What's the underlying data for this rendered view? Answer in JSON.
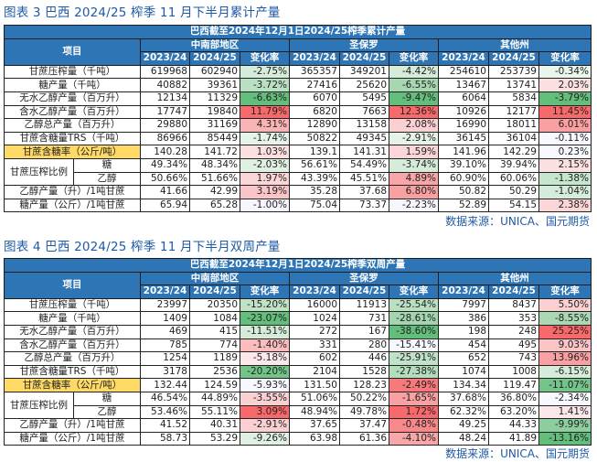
{
  "figures": [
    {
      "title": "图表 3  巴西 2024/25 榨季 11 月下半月累计产量",
      "banner": "巴西截至2024年12月1日2024/25榨季累计产量",
      "item_header": "项目",
      "regions": [
        "中南部地区",
        "圣保罗",
        "其他州"
      ],
      "year_headers": [
        "2023/24",
        "2024/25",
        "变化率"
      ],
      "rows": [
        {
          "label": "甘蔗压榨量（千吨）",
          "values": [
            "619968",
            "602940",
            "-2.75%",
            "365357",
            "349201",
            "-4.42%",
            "254610",
            "253739",
            "-0.34%"
          ],
          "colors": [
            "#d4ecd9",
            "#d4ecd9",
            "#eaf5ec"
          ]
        },
        {
          "label": "糖产量（千吨）",
          "values": [
            "40882",
            "39361",
            "-3.72%",
            "27416",
            "25620",
            "-6.55%",
            "13467",
            "13741",
            "2.03%"
          ],
          "colors": [
            "#b9e0c2",
            "#a7d7b1",
            "#fbe0e2"
          ]
        },
        {
          "label": "无水乙醇产量（百万升）",
          "values": [
            "12134",
            "11329",
            "-6.63%",
            "6070",
            "5495",
            "-9.47%",
            "6064",
            "5834",
            "-3.79%"
          ],
          "colors": [
            "#63be7b",
            "#63be7b",
            "#63be7b"
          ]
        },
        {
          "label": "含水乙醇产量（百万升）",
          "values": [
            "17747",
            "19840",
            "11.79%",
            "6820",
            "7663",
            "12.36%",
            "10926",
            "12177",
            "11.45%"
          ],
          "colors": [
            "#f8696b",
            "#f8696b",
            "#f8696b"
          ]
        },
        {
          "label": "乙醇总产量（百万升）",
          "values": [
            "29880",
            "31169",
            "4.31%",
            "12890",
            "13158",
            "2.08%",
            "16990",
            "18011",
            "6.01%"
          ],
          "colors": [
            "#f9b4b6",
            "#fbd0d2",
            "#f9a0a2"
          ]
        },
        {
          "label": "甘蔗含糖量TRS（千吨）",
          "values": [
            "86966",
            "85449",
            "-1.74%",
            "50822",
            "49345",
            "-2.91%",
            "36145",
            "36104",
            "-0.11%"
          ],
          "colors": [
            "#e6f3e9",
            "#e6f3e9",
            "#f8f8ff"
          ]
        },
        {
          "label": "甘蔗含糖率（公斤/吨）",
          "highlight": "#ffd966",
          "values": [
            "140.28",
            "141.72",
            "1.03%",
            "139.1",
            "141.31",
            "1.59%",
            "141.96",
            "142.29",
            "0.23%"
          ],
          "colors": [
            "#fbe0e2",
            "#fbd6d8",
            "#f8f8ff"
          ]
        },
        {
          "label": "甘蔗压榨比例",
          "subs": [
            {
              "label": "糖",
              "values": [
                "49.34%",
                "48.34%",
                "-2.03%",
                "56.61%",
                "54.49%",
                "-3.74%",
                "39.10%",
                "39.94%",
                "2.15%"
              ],
              "colors": [
                "#e0f1e4",
                "#d4ecd9",
                "#fbe0e2"
              ]
            },
            {
              "label": "乙醇",
              "values": [
                "50.66%",
                "51.66%",
                "1.97%",
                "43.39%",
                "45.51%",
                "4.89%",
                "60.90%",
                "60.06%",
                "-1.38%"
              ],
              "colors": [
                "#fbd6d8",
                "#f9a6a8",
                "#c6e6cd"
              ]
            }
          ]
        },
        {
          "label": "乙醇产量（升）/1吨甘蔗",
          "values": [
            "41.66",
            "42.99",
            "3.19%",
            "35.28",
            "37.68",
            "6.80%",
            "50.82",
            "50.29",
            "-1.04%"
          ],
          "colors": [
            "#fbc4c6",
            "#f9a0a2",
            "#d4ecd9"
          ]
        },
        {
          "label": "糖产量（公斤）/1吨甘蔗",
          "values": [
            "65.94",
            "65.28",
            "-1.00%",
            "75.04",
            "73.37",
            "-2.23%",
            "52.89",
            "54.15",
            "2.38%"
          ],
          "colors": [
            "#f6f6fc",
            "#f6f6fc",
            "#fbd6d8"
          ]
        }
      ],
      "source": "数据来源：UNICA、国元期货"
    },
    {
      "title": "图表 4  巴西 2024/25 榨季 11 月下半月双周产量",
      "banner": "巴西截至2024年12月1日2024/25榨季双周产量",
      "item_header": "项目",
      "regions": [
        "中南部地区",
        "圣保罗",
        "其他州"
      ],
      "year_headers": [
        "2023/24",
        "2024/25",
        "变化率"
      ],
      "rows": [
        {
          "label": "甘蔗压榨量（千吨）",
          "values": [
            "23997",
            "20350",
            "-15.20%",
            "16000",
            "11913",
            "-25.54%",
            "7997",
            "8437",
            "5.50%"
          ],
          "colors": [
            "#c0e3c8",
            "#b9e0c2",
            "#fbd0d2"
          ]
        },
        {
          "label": "糖产量（千吨）",
          "values": [
            "1409",
            "1084",
            "-23.07%",
            "1024",
            "731",
            "-28.61%",
            "386",
            "353",
            "-8.55%"
          ],
          "colors": [
            "#63be7b",
            "#a3d6ae",
            "#a9d8b2"
          ]
        },
        {
          "label": "无水乙醇产量（百万升）",
          "values": [
            "469",
            "415",
            "-11.51%",
            "272",
            "167",
            "-38.60%",
            "198",
            "248",
            "25.25%"
          ],
          "colors": [
            "#d4ecd9",
            "#63be7b",
            "#f8696b"
          ]
        },
        {
          "label": "含水乙醇产量（百万升）",
          "values": [
            "785",
            "774",
            "-1.40%",
            "331",
            "280",
            "-15.41%",
            "454",
            "495",
            "9.03%"
          ],
          "colors": [
            "#fbbcbe",
            "#f8f8ff",
            "#fbc4c6"
          ]
        },
        {
          "label": "乙醇总产量（百万升）",
          "values": [
            "1254",
            "1189",
            "-5.18%",
            "602",
            "446",
            "-25.91%",
            "652",
            "743",
            "13.96%"
          ],
          "colors": [
            "#fce8ea",
            "#c0e3c8",
            "#f9a0a2"
          ]
        },
        {
          "label": "甘蔗含糖量TRS（千吨）",
          "values": [
            "3178",
            "2536",
            "-20.20%",
            "2104",
            "1528",
            "-27.38%",
            "1074",
            "1008",
            "-6.15%"
          ],
          "colors": [
            "#73c488",
            "#b3ddbc",
            "#d4ecd9"
          ]
        },
        {
          "label": "甘蔗含糖率（公斤/吨）",
          "highlight": "#ffd966",
          "values": [
            "132.44",
            "124.59",
            "-5.93%",
            "131.50",
            "128.23",
            "-2.49%",
            "134.34",
            "119.47",
            "-11.07%"
          ],
          "colors": [
            "#f8f8ff",
            "#f8797b",
            "#73c488"
          ]
        },
        {
          "label": "甘蔗压榨比例",
          "subs": [
            {
              "label": "糖",
              "values": [
                "46.54%",
                "44.89%",
                "-3.55%",
                "51.06%",
                "50.22%",
                "-1.65%",
                "37.68%",
                "36.80%",
                "-2.34%"
              ],
              "colors": [
                "#fbd0d2",
                "#f9a0a2",
                "#f8f8ff"
              ]
            },
            {
              "label": "乙醇",
              "values": [
                "53.46%",
                "55.11%",
                "3.09%",
                "48.94%",
                "49.78%",
                "1.72%",
                "62.32%",
                "63.20%",
                "1.41%"
              ],
              "colors": [
                "#f8696b",
                "#f8696b",
                "#fce8ea"
              ]
            }
          ]
        },
        {
          "label": "乙醇产量（升）/1吨甘蔗",
          "values": [
            "41.52",
            "40.31",
            "-2.91%",
            "37.65",
            "37.47",
            "-0.48%",
            "49.25",
            "44.33",
            "-9.99%"
          ],
          "colors": [
            "#fbd0d2",
            "#f8898b",
            "#8ecd9e"
          ]
        },
        {
          "label": "糖产量（公斤）/1吨甘蔗",
          "values": [
            "58.73",
            "53.29",
            "-9.26%",
            "63.98",
            "61.36",
            "-4.10%",
            "48.24",
            "41.89",
            "-13.16%"
          ],
          "colors": [
            "#e0f1e4",
            "#f9a6a8",
            "#63be7b"
          ]
        }
      ],
      "source": "数据来源：UNICA、国元期货"
    }
  ]
}
